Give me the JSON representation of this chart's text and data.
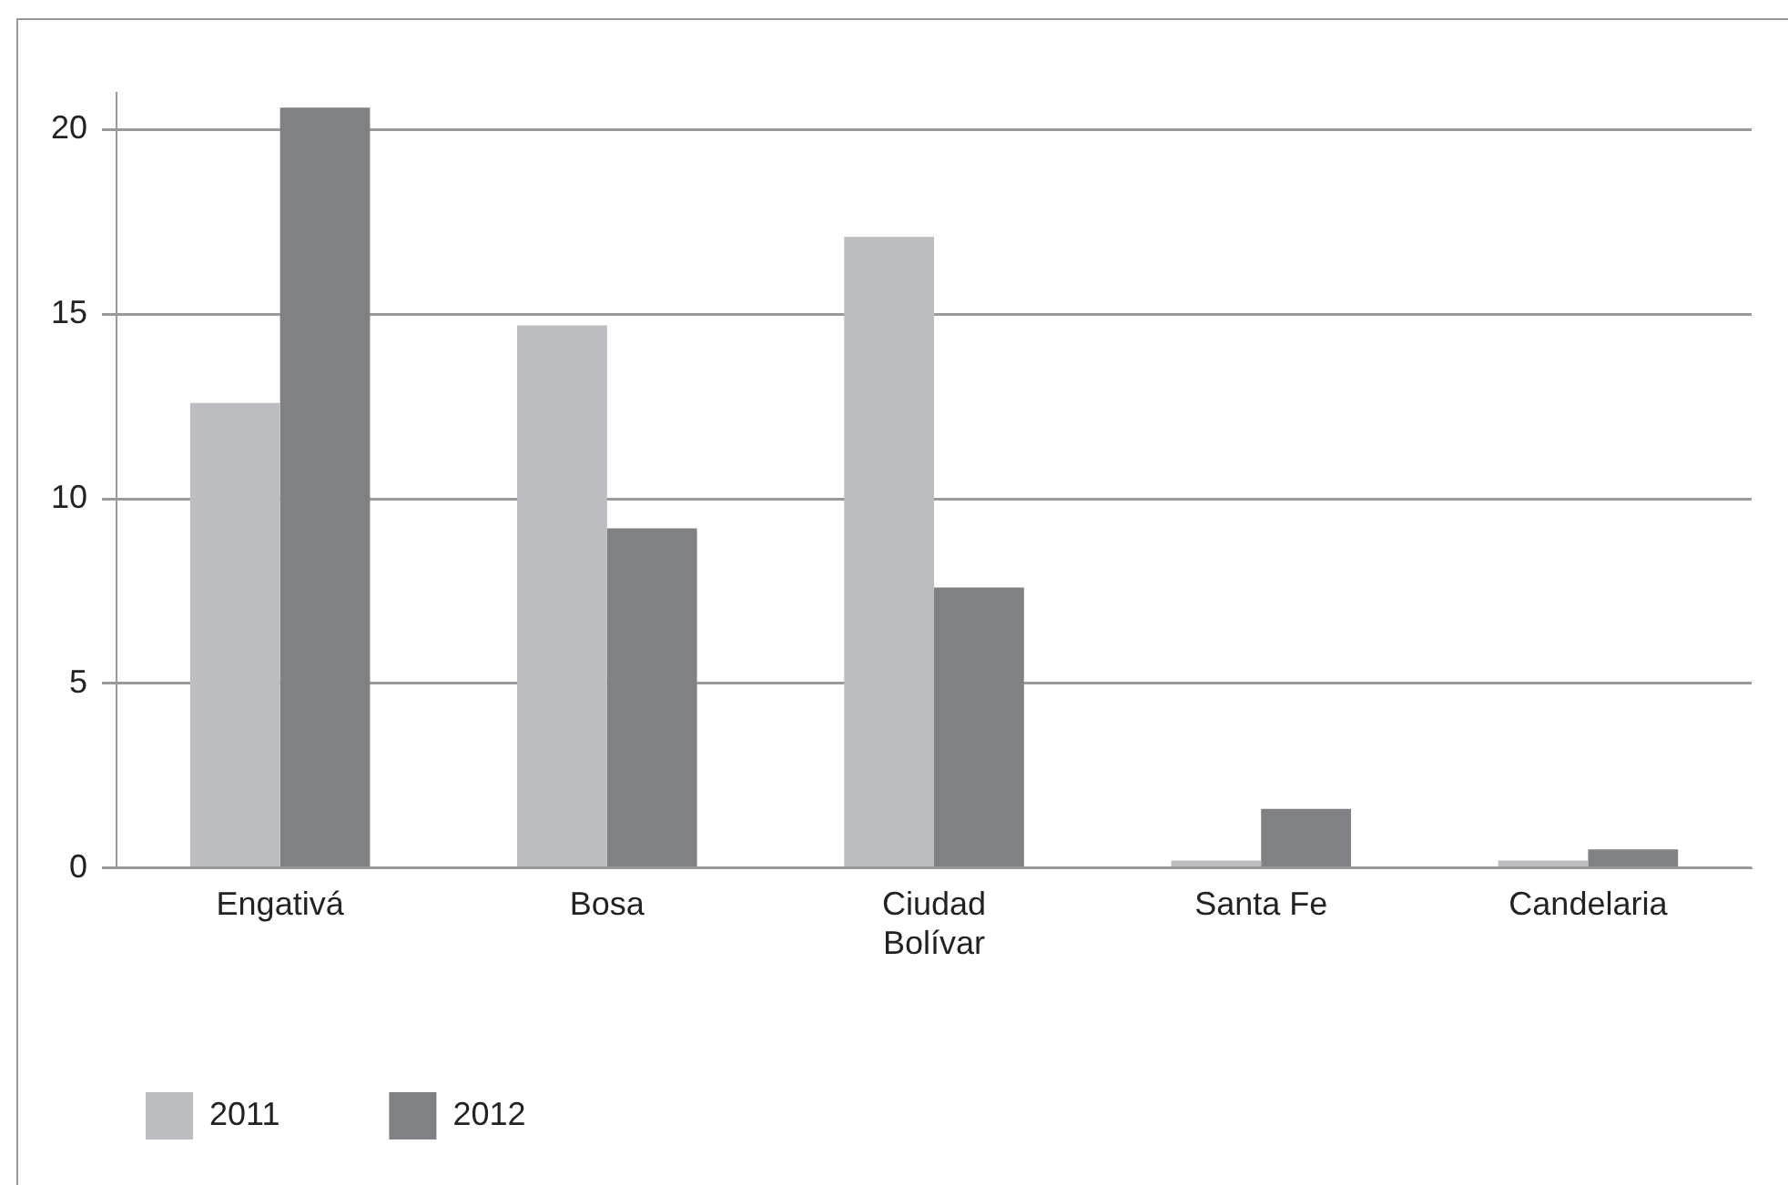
{
  "chart_data": {
    "type": "bar",
    "categories": [
      "Engativá",
      "Bosa",
      "Ciudad Bolívar",
      "Santa Fe",
      "Candelaria"
    ],
    "series": [
      {
        "name": "2011",
        "color": "#bcbdc0",
        "values": [
          12.6,
          14.7,
          17.1,
          0.2,
          0.2
        ]
      },
      {
        "name": "2012",
        "color": "#808184",
        "values": [
          20.6,
          9.2,
          7.6,
          1.6,
          0.5
        ]
      }
    ],
    "ylim": [
      0,
      21
    ],
    "yticks": [
      0,
      5,
      10,
      15,
      20
    ],
    "grid": "y",
    "legend": "bottom left"
  }
}
